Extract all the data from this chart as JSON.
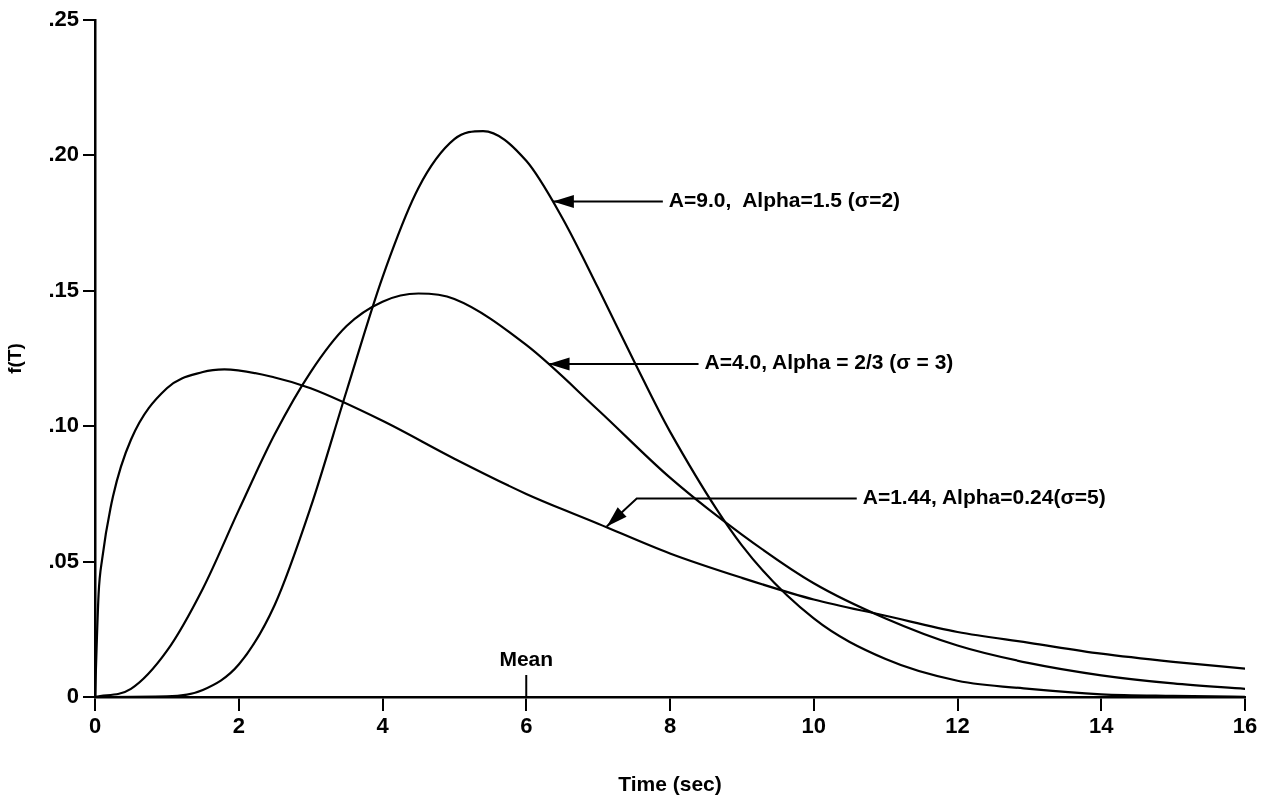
{
  "chart_data": {
    "type": "line",
    "xlabel": "Time (sec)",
    "ylabel": "f(T)",
    "xlim": [
      0,
      16
    ],
    "xticks": [
      0,
      2,
      4,
      6,
      8,
      10,
      12,
      14,
      16
    ],
    "ylim": [
      0,
      0.25
    ],
    "yticks": [
      {
        "value": 0,
        "label": "0"
      },
      {
        "value": 0.05,
        "label": ".05"
      },
      {
        "value": 0.1,
        "label": ".10"
      },
      {
        "value": 0.15,
        "label": ".15"
      },
      {
        "value": 0.2,
        "label": ".20"
      },
      {
        "value": 0.25,
        "label": ".25"
      }
    ],
    "grid": false,
    "legend": false,
    "marker": "none",
    "line_style": "solid",
    "series": [
      {
        "color": "#000000",
        "x": [
          0,
          1,
          1.5,
          2,
          2.5,
          3,
          3.5,
          4,
          4.5,
          5,
          5.4,
          6,
          6.5,
          7,
          7.5,
          8,
          9,
          10,
          11,
          12,
          13,
          14,
          15,
          16
        ],
        "values": [
          0,
          0.0002,
          0.0026,
          0.012,
          0.034,
          0.07,
          0.113,
          0.155,
          0.188,
          0.206,
          0.209,
          0.198,
          0.177,
          0.151,
          0.124,
          0.098,
          0.056,
          0.029,
          0.014,
          0.006,
          0.003,
          0.001,
          0.0004,
          0.0001
        ]
      },
      {
        "color": "#000000",
        "x": [
          0,
          0.5,
          1,
          1.5,
          2,
          2.5,
          3,
          3.5,
          4,
          4.5,
          5,
          6,
          7,
          8,
          9,
          10,
          11,
          12,
          13,
          14,
          15,
          16
        ],
        "values": [
          0,
          0.003,
          0.017,
          0.04,
          0.069,
          0.097,
          0.12,
          0.137,
          0.146,
          0.149,
          0.147,
          0.13,
          0.106,
          0.081,
          0.06,
          0.042,
          0.029,
          0.019,
          0.0125,
          0.008,
          0.005,
          0.003
        ]
      },
      {
        "color": "#000000",
        "x": [
          0,
          0.05,
          0.1,
          0.25,
          0.5,
          1,
          1.5,
          1.8,
          2.5,
          3,
          4,
          5,
          6,
          7,
          8,
          9,
          10,
          11,
          12,
          13,
          14,
          15,
          16
        ],
        "values": [
          0,
          0.038,
          0.051,
          0.074,
          0.095,
          0.114,
          0.12,
          0.121,
          0.118,
          0.114,
          0.102,
          0.088,
          0.075,
          0.064,
          0.053,
          0.044,
          0.036,
          0.03,
          0.024,
          0.02,
          0.016,
          0.013,
          0.0105
        ]
      }
    ],
    "ref_lines": [
      {
        "axis": "x",
        "value": 6,
        "label": "Mean"
      }
    ],
    "annotations": [
      {
        "text": "A=9.0,  Alpha=1.5 (σ=2)",
        "x": 6.37,
        "y": 0.183
      },
      {
        "text": "A=4.0, Alpha = 2/3 (σ = 3)",
        "x": 6.31,
        "y": 0.123
      },
      {
        "text": "A=1.44, Alpha=0.24(σ=5)",
        "x": 7.12,
        "y": 0.063
      }
    ]
  }
}
